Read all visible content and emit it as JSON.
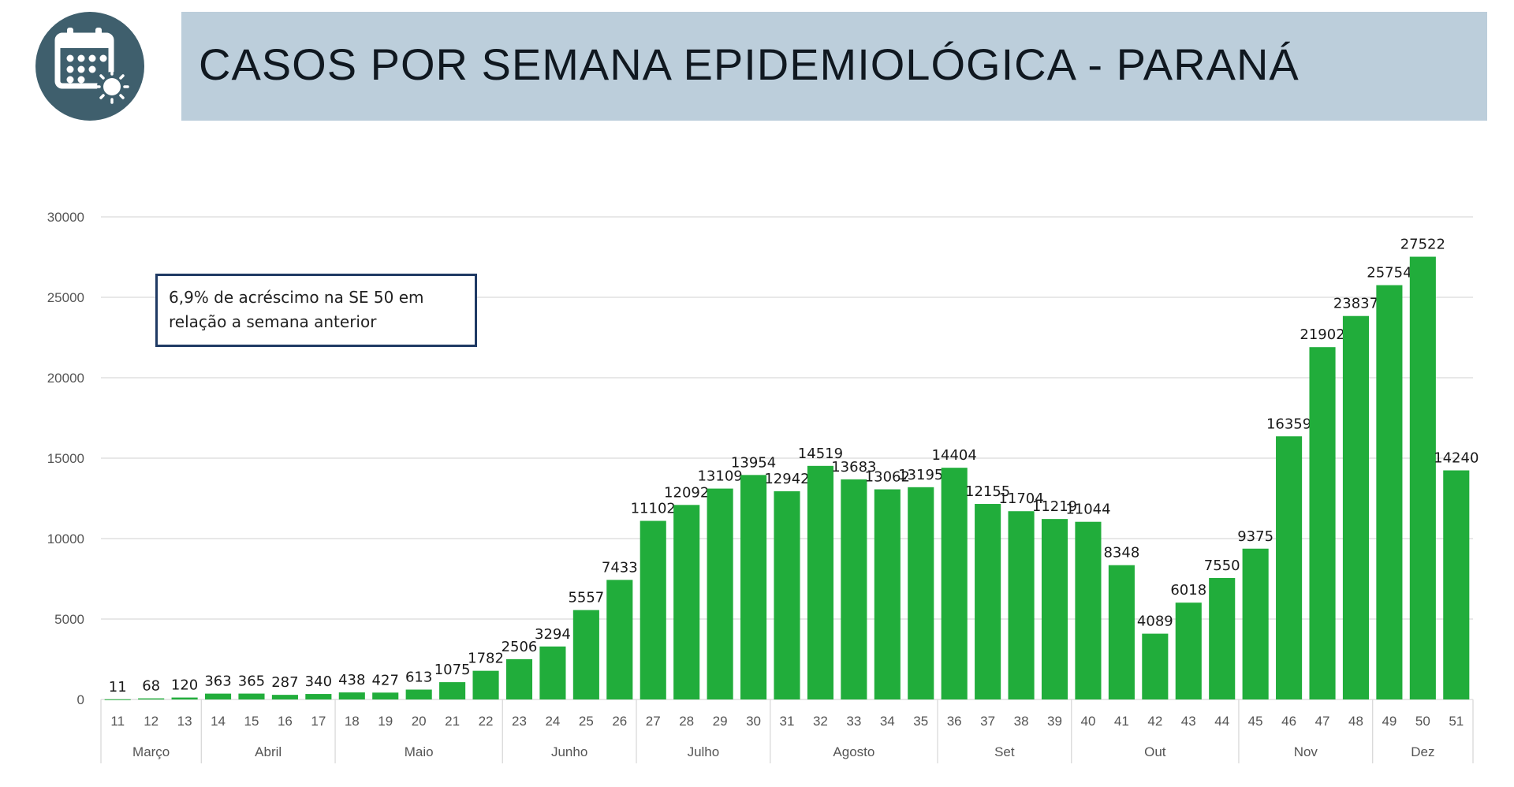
{
  "header": {
    "icon": "calendar-virus-icon",
    "title": "CASOS POR SEMANA EPIDEMIOLÓGICA - PARANÁ"
  },
  "annotation": {
    "line1": "6,9% de acréscimo na SE 50 em",
    "line2": "relação a semana anterior"
  },
  "colors": {
    "bar": "#21ad3b",
    "title_bg": "#bccedb",
    "icon_bg": "#3f5f6d",
    "annotation_border": "#1f3a64"
  },
  "chart_data": {
    "type": "bar",
    "title": "",
    "xlabel": "",
    "ylabel": "",
    "ylim": [
      0,
      30000
    ],
    "yticks": [
      0,
      5000,
      10000,
      15000,
      20000,
      25000,
      30000
    ],
    "grid": true,
    "categories": [
      "11",
      "12",
      "13",
      "14",
      "15",
      "16",
      "17",
      "18",
      "19",
      "20",
      "21",
      "22",
      "23",
      "24",
      "25",
      "26",
      "27",
      "28",
      "29",
      "30",
      "31",
      "32",
      "33",
      "34",
      "35",
      "36",
      "37",
      "38",
      "39",
      "40",
      "41",
      "42",
      "43",
      "44",
      "45",
      "46",
      "47",
      "48",
      "49",
      "50",
      "51"
    ],
    "values": [
      11,
      68,
      120,
      363,
      365,
      287,
      340,
      438,
      427,
      613,
      1075,
      1782,
      2506,
      3294,
      5557,
      7433,
      11102,
      12092,
      13109,
      13954,
      12942,
      14519,
      13683,
      13062,
      13195,
      14404,
      12155,
      11704,
      11219,
      11044,
      8348,
      4089,
      6018,
      7550,
      9375,
      16359,
      21902,
      23837,
      25754,
      27522,
      14240
    ],
    "month_groups": [
      {
        "label": "Março",
        "count": 3
      },
      {
        "label": "Abril",
        "count": 4
      },
      {
        "label": "Maio",
        "count": 5
      },
      {
        "label": "Junho",
        "count": 4
      },
      {
        "label": "Julho",
        "count": 4
      },
      {
        "label": "Agosto",
        "count": 5
      },
      {
        "label": "Set",
        "count": 4
      },
      {
        "label": "Out",
        "count": 5
      },
      {
        "label": "Nov",
        "count": 4
      },
      {
        "label": "Dez",
        "count": 3
      }
    ]
  }
}
